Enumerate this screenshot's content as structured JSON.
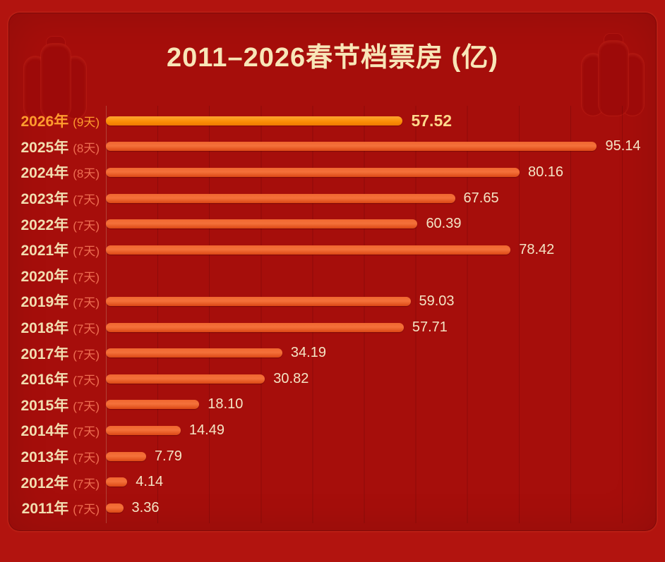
{
  "title": "2011–2026春节档票房 (亿)",
  "colors": {
    "background_outer": "#b2140f",
    "background_panel": "#a60e0b",
    "title_text": "#f8e6b8",
    "bar_normal": "#e8531d",
    "bar_highlight": "#fb8e07",
    "year_label": "#f2ddb0",
    "days_label": "#ee6e52",
    "value_label": "#f4e4c4",
    "highlight_text": "#ff9c2e",
    "highlight_value": "#ffd98c"
  },
  "chart_data": {
    "type": "bar",
    "orientation": "horizontal",
    "title": "2011–2026春节档票房 (亿)",
    "unit": "亿",
    "xlim": [
      0,
      100
    ],
    "grid_interval": 10,
    "grid": "faint vertical lines",
    "legend": "none",
    "rows": [
      {
        "year": "2026年",
        "days": "(9天)",
        "value": 57.52,
        "value_label": "57.52",
        "highlight": true
      },
      {
        "year": "2025年",
        "days": "(8天)",
        "value": 95.14,
        "value_label": "95.14",
        "highlight": false
      },
      {
        "year": "2024年",
        "days": "(8天)",
        "value": 80.16,
        "value_label": "80.16",
        "highlight": false
      },
      {
        "year": "2023年",
        "days": "(7天)",
        "value": 67.65,
        "value_label": "67.65",
        "highlight": false
      },
      {
        "year": "2022年",
        "days": "(7天)",
        "value": 60.39,
        "value_label": "60.39",
        "highlight": false
      },
      {
        "year": "2021年",
        "days": "(7天)",
        "value": 78.42,
        "value_label": "78.42",
        "highlight": false
      },
      {
        "year": "2020年",
        "days": "(7天)",
        "value": null,
        "value_label": "",
        "highlight": false
      },
      {
        "year": "2019年",
        "days": "(7天)",
        "value": 59.03,
        "value_label": "59.03",
        "highlight": false
      },
      {
        "year": "2018年",
        "days": "(7天)",
        "value": 57.71,
        "value_label": "57.71",
        "highlight": false
      },
      {
        "year": "2017年",
        "days": "(7天)",
        "value": 34.19,
        "value_label": "34.19",
        "highlight": false
      },
      {
        "year": "2016年",
        "days": "(7天)",
        "value": 30.82,
        "value_label": "30.82",
        "highlight": false
      },
      {
        "year": "2015年",
        "days": "(7天)",
        "value": 18.1,
        "value_label": "18.10",
        "highlight": false
      },
      {
        "year": "2014年",
        "days": "(7天)",
        "value": 14.49,
        "value_label": "14.49",
        "highlight": false
      },
      {
        "year": "2013年",
        "days": "(7天)",
        "value": 7.79,
        "value_label": "7.79",
        "highlight": false
      },
      {
        "year": "2012年",
        "days": "(7天)",
        "value": 4.14,
        "value_label": "4.14",
        "highlight": false
      },
      {
        "year": "2011年",
        "days": "(7天)",
        "value": 3.36,
        "value_label": "3.36",
        "highlight": false
      }
    ]
  }
}
